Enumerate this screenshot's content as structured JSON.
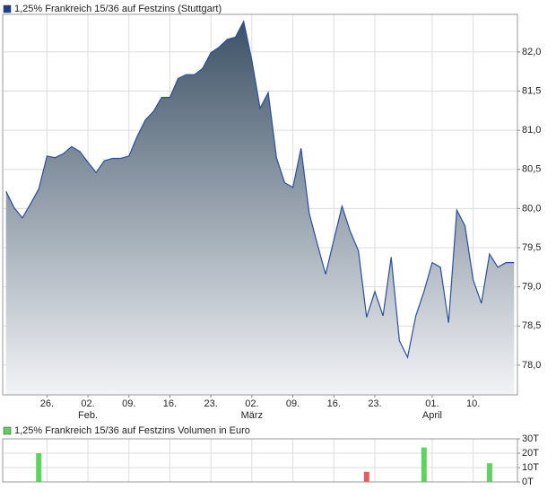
{
  "chart_data": [
    {
      "type": "area",
      "legend": "1,25% Frankreich 15/36 auf Festzins (Stuttgart)",
      "legend_color": "#1f3f8f",
      "color": "#2a4fa0",
      "fill_top": "#3d5266",
      "fill_bottom": "#f2f3f6",
      "grid": true,
      "x": [
        0,
        1,
        2,
        3,
        4,
        5,
        6,
        7,
        8,
        9,
        10,
        11,
        12,
        13,
        14,
        15,
        16,
        17,
        18,
        19,
        20,
        21,
        22,
        23,
        24,
        25,
        26,
        27,
        28,
        29,
        30,
        31,
        32,
        33,
        34,
        35,
        36,
        37,
        38,
        39,
        40,
        41,
        42,
        43,
        44,
        45,
        46,
        47,
        48,
        49,
        50,
        51,
        52,
        53,
        54,
        55,
        56,
        57,
        58,
        59,
        60,
        61,
        62
      ],
      "values": [
        80.22,
        80.01,
        79.88,
        80.06,
        80.25,
        80.67,
        80.65,
        80.7,
        80.79,
        80.73,
        80.59,
        80.46,
        80.61,
        80.64,
        80.64,
        80.67,
        80.92,
        81.13,
        81.24,
        81.42,
        81.42,
        81.66,
        81.71,
        81.71,
        81.79,
        81.99,
        82.06,
        82.16,
        82.19,
        82.39,
        81.89,
        81.28,
        81.48,
        80.65,
        80.33,
        80.27,
        80.77,
        79.94,
        79.54,
        79.16,
        79.6,
        80.03,
        79.71,
        79.46,
        78.61,
        78.94,
        78.63,
        79.38,
        78.31,
        78.1,
        78.63,
        78.94,
        79.31,
        79.25,
        78.54,
        79.98,
        79.78,
        79.09,
        78.79,
        79.42,
        79.25,
        79.31,
        79.31
      ],
      "xlim": [
        -0.4,
        62.4
      ],
      "xticks": [
        {
          "value": 5,
          "label": "26."
        },
        {
          "value": 10,
          "label": "02."
        },
        {
          "value": 15,
          "label": "09."
        },
        {
          "value": 20,
          "label": "16."
        },
        {
          "value": 25,
          "label": "23."
        },
        {
          "value": 30,
          "label": "02."
        },
        {
          "value": 35,
          "label": "09."
        },
        {
          "value": 40,
          "label": "16."
        },
        {
          "value": 45,
          "label": "23."
        },
        {
          "value": 52,
          "label": "01."
        },
        {
          "value": 57,
          "label": "10."
        }
      ],
      "month_ticks": [
        {
          "value": 10,
          "label": "Feb."
        },
        {
          "value": 30,
          "label": "März"
        },
        {
          "value": 52,
          "label": "April"
        }
      ],
      "ylim": [
        77.62,
        82.48
      ],
      "yticks": [
        {
          "value": 78,
          "label": "78,0"
        },
        {
          "value": 78.5,
          "label": "78,5"
        },
        {
          "value": 79,
          "label": "79,0"
        },
        {
          "value": 79.5,
          "label": "79,5"
        },
        {
          "value": 80,
          "label": "80,0"
        },
        {
          "value": 80.5,
          "label": "80,5"
        },
        {
          "value": 81,
          "label": "81,0"
        },
        {
          "value": 81.5,
          "label": "81,5"
        },
        {
          "value": 82,
          "label": "82,0"
        }
      ]
    },
    {
      "type": "bar",
      "legend": "1,25% Frankreich 15/36 auf Festzins Volumen in Euro",
      "legend_color": "#66cc66",
      "x": [
        4,
        44,
        51,
        59
      ],
      "values": [
        20,
        7,
        24,
        13
      ],
      "colors": [
        "#5fd35f",
        "#e06060",
        "#5fd35f",
        "#5fd35f"
      ],
      "xlim": [
        -0.4,
        62.4
      ],
      "ylim": [
        0,
        30
      ],
      "yticks": [
        {
          "value": 0,
          "label": "0T"
        },
        {
          "value": 10,
          "label": "10T"
        },
        {
          "value": 20,
          "label": "20T"
        },
        {
          "value": 30,
          "label": "30T"
        }
      ]
    }
  ]
}
